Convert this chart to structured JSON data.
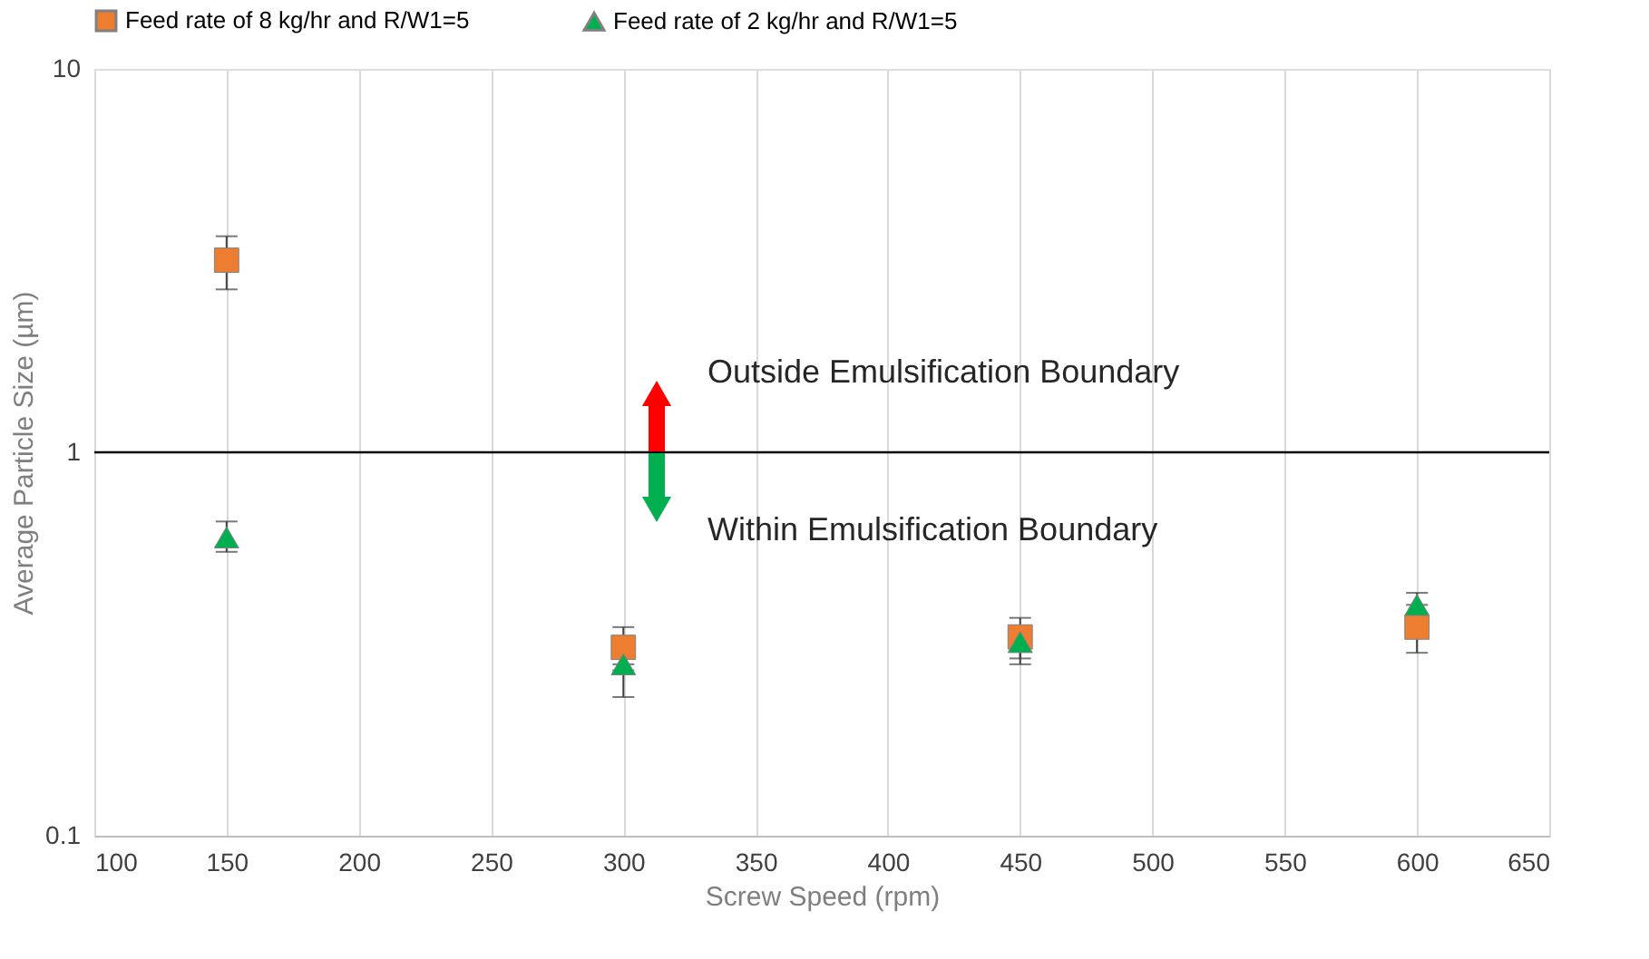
{
  "chart_data": {
    "type": "scatter",
    "xlabel": "Screw Speed (rpm)",
    "ylabel": "Average Particle Size (µm)",
    "x": [
      150,
      300,
      450,
      600
    ],
    "series": [
      {
        "name": "Feed rate of 8 kg/hr and R/W1=5",
        "color": "#ed7d31",
        "marker": "square",
        "values": [
          3.17,
          0.31,
          0.33,
          0.35
        ],
        "errors": [
          [
            2.66,
            3.66
          ],
          [
            0.27,
            0.35
          ],
          [
            0.28,
            0.37
          ],
          [
            0.3,
            0.4
          ]
        ]
      },
      {
        "name": "Feed rate of 2 kg/hr and R/W1=5",
        "color": "#00b050",
        "marker": "triangle",
        "values": [
          0.6,
          0.28,
          0.32,
          0.4
        ],
        "errors": [
          [
            0.55,
            0.66
          ],
          [
            0.23,
            0.28
          ],
          [
            0.29,
            0.35
          ],
          [
            0.37,
            0.43
          ]
        ]
      }
    ],
    "xlim": [
      100,
      650
    ],
    "xticks": [
      100,
      150,
      200,
      250,
      300,
      350,
      400,
      450,
      500,
      550,
      600,
      650
    ],
    "ylim": [
      0.1,
      10
    ],
    "yticks": [
      0.1,
      1,
      10
    ],
    "log": "y",
    "grid": "x",
    "legend": "top",
    "ref_lines": [
      {
        "axis": "y",
        "value": 1,
        "color": "#000000"
      }
    ],
    "annotations": [
      "Outside Emulsification Boundary",
      "Within Emulsification Boundary"
    ]
  }
}
